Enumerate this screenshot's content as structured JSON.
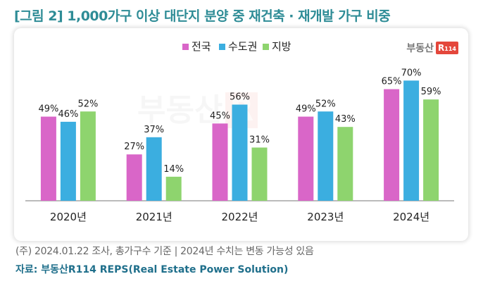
{
  "title": "[그림 2] 1,000가구 이상 대단지 분양 중 재건축 · 재개발 가구 비중",
  "brand": {
    "text": "부동산",
    "box": "R",
    "box_sub": "114"
  },
  "footnote": "(주) 2024.01.22 조사, 총가구수 기준 | 2024년 수치는 변동 가능성 있음",
  "source": "자료: 부동산R114 REPS(Real Estate Power Solution)",
  "chart_data": {
    "type": "bar",
    "categories": [
      "2020년",
      "2021년",
      "2022년",
      "2023년",
      "2024년"
    ],
    "series": [
      {
        "name": "전국",
        "values": [
          49,
          27,
          45,
          49,
          65
        ],
        "color": "#D966C8"
      },
      {
        "name": "수도권",
        "values": [
          46,
          37,
          56,
          52,
          70
        ],
        "color": "#3BAEE0"
      },
      {
        "name": "지방",
        "values": [
          52,
          14,
          31,
          43,
          59
        ],
        "color": "#8ED46E"
      }
    ],
    "value_suffix": "%",
    "ylim": [
      0,
      80
    ],
    "legend_position": "top-center",
    "grid": false
  }
}
